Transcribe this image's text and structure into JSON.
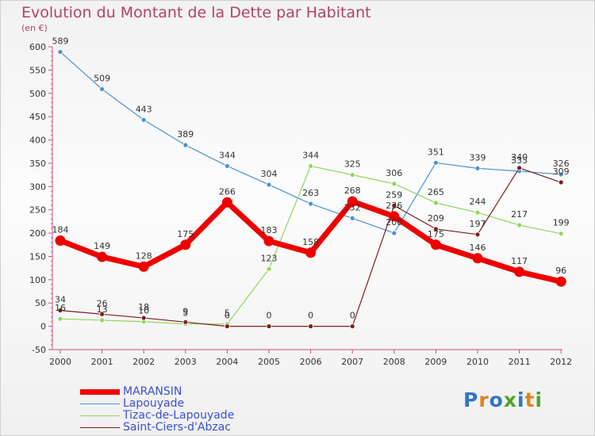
{
  "title": "Evolution du Montant de la Dette par Habitant",
  "unit": "(en €)",
  "logo": {
    "text": "Proxiti",
    "colors": [
      "#2f74c8",
      "#e0831b",
      "#2f74c8",
      "#4ea52f",
      "#2f74c8",
      "#e0831b",
      "#4ea52f"
    ]
  },
  "chart_data": {
    "type": "line",
    "title": "Evolution du Montant de la Dette par Habitant",
    "ylabel": "(en €)",
    "xlabel": "",
    "x": [
      "2000",
      "2001",
      "2002",
      "2003",
      "2004",
      "2005",
      "2006",
      "2007",
      "2008",
      "2009",
      "2010",
      "2011",
      "2012"
    ],
    "ylim": [
      -50,
      600
    ],
    "yticks": [
      -50,
      0,
      50,
      100,
      150,
      200,
      250,
      300,
      350,
      400,
      450,
      500,
      550,
      600
    ],
    "grid": false,
    "legend_position": "bottom-left",
    "series": [
      {
        "name": "MARANSIN",
        "color": "#ee0000",
        "values": [
          184,
          149,
          128,
          175,
          266,
          183,
          158,
          268,
          236,
          175,
          146,
          117,
          96
        ],
        "labels": [
          "184",
          "149",
          "128",
          "175",
          "266",
          "183",
          "158",
          "268",
          "236",
          "175",
          "146",
          "117",
          "96"
        ],
        "bold": true
      },
      {
        "name": "Lapouyade",
        "color": "#4a93d0",
        "values": [
          589,
          509,
          443,
          389,
          344,
          304,
          263,
          232,
          200,
          351,
          339,
          333,
          326
        ],
        "labels": [
          "589",
          "509",
          "443",
          "389",
          "344",
          "304",
          "263",
          "232",
          "200",
          "351",
          "339",
          "333",
          "326"
        ],
        "bold": false
      },
      {
        "name": "Tizac-de-Lapouyade",
        "color": "#8fd65c",
        "values": [
          16,
          13,
          10,
          5,
          5,
          123,
          344,
          325,
          306,
          265,
          244,
          217,
          199
        ],
        "labels": [
          "16",
          "13",
          "10",
          "5",
          "5",
          "123",
          "344",
          "325",
          "306",
          "265",
          "244",
          "217",
          "199"
        ],
        "bold": false
      },
      {
        "name": "Saint-Ciers-d'Abzac",
        "color": "#7a1f1f",
        "values": [
          34,
          26,
          18,
          9,
          0,
          0,
          0,
          0,
          259,
          209,
          197,
          340,
          309
        ],
        "labels": [
          "34",
          "26",
          "18",
          "9",
          "0",
          "0",
          "0",
          "0",
          "259",
          "209",
          "197",
          "340",
          "309"
        ],
        "bold": false
      }
    ]
  }
}
